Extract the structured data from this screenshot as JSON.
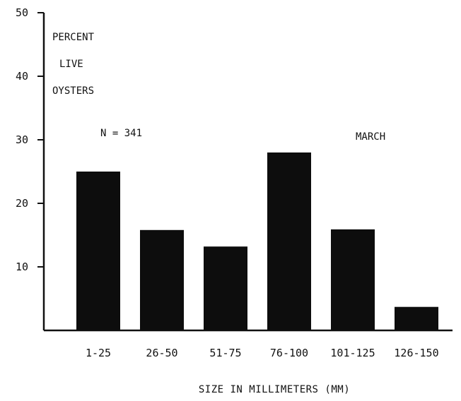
{
  "chart_data": {
    "type": "bar",
    "categories": [
      "1-25",
      "26-50",
      "51-75",
      "76-100",
      "101-125",
      "126-150"
    ],
    "values": [
      25,
      15.8,
      13.2,
      28,
      15.9,
      3.7
    ],
    "ylabel_lines": [
      "PERCENT",
      "LIVE",
      "OYSTERS"
    ],
    "xlabel": "SIZE IN MILLIMETERS (MM)",
    "ylim": [
      0,
      50
    ],
    "yticks": [
      10,
      20,
      30,
      40,
      50
    ],
    "annotations": {
      "sample_size": "N = 341",
      "month": "MARCH"
    },
    "grid": false,
    "bar_color": "#0d0d0d"
  }
}
